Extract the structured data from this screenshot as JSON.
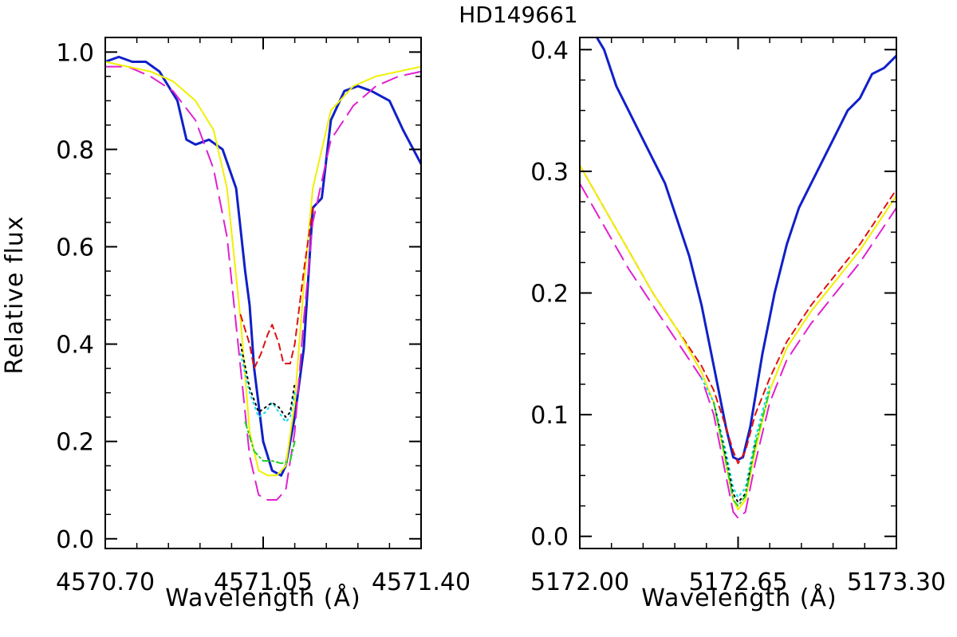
{
  "chart_data": [
    {
      "type": "line",
      "title": "HD149661",
      "xlabel": "Wavelength (Å)",
      "ylabel": "Relative flux",
      "xlim": [
        4570.7,
        4571.4
      ],
      "ylim": [
        -0.02,
        1.03
      ],
      "x_ticks": [
        4570.7,
        4571.05,
        4571.4
      ],
      "x_tick_labels": [
        "4570.70",
        "4571.05",
        "4571.40"
      ],
      "y_ticks": [
        0.0,
        0.2,
        0.4,
        0.6,
        0.8,
        1.0
      ],
      "y_tick_labels": [
        "0.0",
        "0.2",
        "0.4",
        "0.6",
        "0.8",
        "1.0"
      ],
      "series": [
        {
          "name": "observed",
          "color": "#1020c8",
          "dash": "solid",
          "width": 3,
          "x": [
            4570.7,
            4570.73,
            4570.76,
            4570.79,
            4570.82,
            4570.86,
            4570.88,
            4570.9,
            4570.93,
            4570.96,
            4570.99,
            4571.01,
            4571.02,
            4571.03,
            4571.05,
            4571.07,
            4571.09,
            4571.1,
            4571.12,
            4571.14,
            4571.16,
            4571.18,
            4571.2,
            4571.23,
            4571.26,
            4571.29,
            4571.33,
            4571.36,
            4571.4
          ],
          "y": [
            0.98,
            0.99,
            0.98,
            0.98,
            0.96,
            0.9,
            0.82,
            0.81,
            0.82,
            0.8,
            0.72,
            0.55,
            0.48,
            0.35,
            0.2,
            0.14,
            0.13,
            0.15,
            0.25,
            0.39,
            0.68,
            0.7,
            0.86,
            0.92,
            0.93,
            0.92,
            0.9,
            0.84,
            0.77
          ]
        },
        {
          "name": "model-magenta",
          "color": "#e020d0",
          "dash": "long-dash",
          "width": 2,
          "x": [
            4570.7,
            4570.75,
            4570.8,
            4570.85,
            4570.9,
            4570.94,
            4570.97,
            4571.0,
            4571.02,
            4571.04,
            4571.06,
            4571.08,
            4571.1,
            4571.12,
            4571.14,
            4571.16,
            4571.2,
            4571.25,
            4571.3,
            4571.35,
            4571.4
          ],
          "y": [
            0.97,
            0.97,
            0.95,
            0.92,
            0.86,
            0.76,
            0.62,
            0.35,
            0.17,
            0.09,
            0.08,
            0.08,
            0.1,
            0.22,
            0.45,
            0.65,
            0.82,
            0.89,
            0.93,
            0.95,
            0.96
          ]
        },
        {
          "name": "model-yellow",
          "color": "#f0f000",
          "dash": "solid",
          "width": 2,
          "x": [
            4570.7,
            4570.75,
            4570.8,
            4570.85,
            4570.9,
            4570.94,
            4570.97,
            4571.0,
            4571.02,
            4571.04,
            4571.06,
            4571.08,
            4571.1,
            4571.12,
            4571.14,
            4571.16,
            4571.2,
            4571.25,
            4571.3,
            4571.35,
            4571.4
          ],
          "y": [
            0.98,
            0.97,
            0.96,
            0.94,
            0.9,
            0.84,
            0.72,
            0.45,
            0.22,
            0.14,
            0.13,
            0.13,
            0.15,
            0.28,
            0.52,
            0.72,
            0.88,
            0.93,
            0.95,
            0.96,
            0.97
          ]
        },
        {
          "name": "model-red",
          "color": "#e01010",
          "dash": "dashed",
          "width": 2,
          "x": [
            4571.0,
            4571.02,
            4571.03,
            4571.045,
            4571.06,
            4571.07,
            4571.085,
            4571.095,
            4571.11,
            4571.12,
            4571.14,
            4571.16
          ],
          "y": [
            0.46,
            0.4,
            0.35,
            0.38,
            0.42,
            0.44,
            0.4,
            0.36,
            0.36,
            0.4,
            0.55,
            0.68
          ]
        },
        {
          "name": "model-cyan",
          "color": "#10d8e8",
          "dash": "dotted",
          "width": 2,
          "x": [
            4571.0,
            4571.02,
            4571.04,
            4571.055,
            4571.07,
            4571.085,
            4571.1,
            4571.11,
            4571.12
          ],
          "y": [
            0.38,
            0.3,
            0.25,
            0.26,
            0.28,
            0.26,
            0.24,
            0.25,
            0.3
          ]
        },
        {
          "name": "model-black",
          "color": "#000000",
          "dash": "dotted",
          "width": 2,
          "x": [
            4571.0,
            4571.02,
            4571.04,
            4571.055,
            4571.07,
            4571.085,
            4571.1,
            4571.11,
            4571.12
          ],
          "y": [
            0.4,
            0.31,
            0.26,
            0.27,
            0.28,
            0.27,
            0.25,
            0.26,
            0.32
          ]
        },
        {
          "name": "model-green",
          "color": "#20d020",
          "dash": "dash-dot",
          "width": 2,
          "x": [
            4571.01,
            4571.03,
            4571.05,
            4571.07,
            4571.09,
            4571.11,
            4571.12
          ],
          "y": [
            0.24,
            0.18,
            0.16,
            0.16,
            0.155,
            0.16,
            0.2
          ]
        }
      ]
    },
    {
      "type": "line",
      "title": "",
      "xlabel": "Wavelength (Å)",
      "ylabel": "",
      "xlim": [
        5172.0,
        5173.3
      ],
      "ylim": [
        -0.01,
        0.41
      ],
      "x_ticks": [
        5172.0,
        5172.65,
        5173.3
      ],
      "x_tick_labels": [
        "5172.00",
        "5172.65",
        "5173.30"
      ],
      "y_ticks": [
        0.0,
        0.1,
        0.2,
        0.3,
        0.4
      ],
      "y_tick_labels": [
        "0.0",
        "0.1",
        "0.2",
        "0.3",
        "0.4"
      ],
      "series": [
        {
          "name": "observed",
          "color": "#1020c8",
          "dash": "solid",
          "width": 3,
          "x": [
            5172.07,
            5172.1,
            5172.15,
            5172.2,
            5172.25,
            5172.3,
            5172.35,
            5172.4,
            5172.45,
            5172.5,
            5172.55,
            5172.6,
            5172.63,
            5172.65,
            5172.67,
            5172.7,
            5172.75,
            5172.8,
            5172.85,
            5172.9,
            5172.95,
            5173.0,
            5173.05,
            5173.1,
            5173.15,
            5173.2,
            5173.25,
            5173.3
          ],
          "y": [
            0.41,
            0.4,
            0.37,
            0.35,
            0.33,
            0.31,
            0.29,
            0.26,
            0.23,
            0.19,
            0.14,
            0.09,
            0.065,
            0.063,
            0.065,
            0.09,
            0.15,
            0.2,
            0.24,
            0.27,
            0.29,
            0.31,
            0.33,
            0.35,
            0.36,
            0.38,
            0.385,
            0.395
          ]
        },
        {
          "name": "model-red",
          "color": "#e01010",
          "dash": "dashed",
          "width": 2,
          "x": [
            5172.0,
            5172.1,
            5172.2,
            5172.3,
            5172.4,
            5172.5,
            5172.55,
            5172.6,
            5172.63,
            5172.65,
            5172.68,
            5172.72,
            5172.78,
            5172.85,
            5172.95,
            5173.05,
            5173.15,
            5173.3
          ],
          "y": [
            0.305,
            0.27,
            0.235,
            0.2,
            0.17,
            0.14,
            0.12,
            0.09,
            0.07,
            0.06,
            0.07,
            0.1,
            0.13,
            0.16,
            0.19,
            0.215,
            0.24,
            0.285
          ]
        },
        {
          "name": "model-yellow",
          "color": "#f0f000",
          "dash": "solid",
          "width": 2,
          "x": [
            5172.0,
            5172.1,
            5172.2,
            5172.3,
            5172.4,
            5172.5,
            5172.55,
            5172.6,
            5172.63,
            5172.65,
            5172.68,
            5172.72,
            5172.78,
            5172.85,
            5172.95,
            5173.05,
            5173.15,
            5173.3
          ],
          "y": [
            0.305,
            0.27,
            0.235,
            0.2,
            0.17,
            0.135,
            0.11,
            0.06,
            0.03,
            0.022,
            0.03,
            0.07,
            0.12,
            0.155,
            0.185,
            0.21,
            0.235,
            0.28
          ]
        },
        {
          "name": "model-magenta",
          "color": "#e020d0",
          "dash": "long-dash",
          "width": 2,
          "x": [
            5172.0,
            5172.1,
            5172.2,
            5172.3,
            5172.4,
            5172.5,
            5172.55,
            5172.6,
            5172.63,
            5172.65,
            5172.68,
            5172.72,
            5172.78,
            5172.85,
            5172.95,
            5173.05,
            5173.15,
            5173.3
          ],
          "y": [
            0.29,
            0.255,
            0.22,
            0.19,
            0.16,
            0.13,
            0.1,
            0.05,
            0.02,
            0.015,
            0.02,
            0.06,
            0.11,
            0.145,
            0.175,
            0.2,
            0.225,
            0.27
          ]
        },
        {
          "name": "model-cyan",
          "color": "#10d8e8",
          "dash": "dotted",
          "width": 2,
          "x": [
            5172.5,
            5172.55,
            5172.6,
            5172.63,
            5172.65,
            5172.68,
            5172.72,
            5172.78
          ],
          "y": [
            0.13,
            0.11,
            0.07,
            0.04,
            0.032,
            0.04,
            0.08,
            0.125
          ]
        },
        {
          "name": "model-black",
          "color": "#000000",
          "dash": "dotted",
          "width": 2,
          "x": [
            5172.55,
            5172.6,
            5172.63,
            5172.65,
            5172.68,
            5172.72
          ],
          "y": [
            0.11,
            0.065,
            0.035,
            0.028,
            0.035,
            0.075
          ]
        },
        {
          "name": "model-green",
          "color": "#20d020",
          "dash": "dash-dot",
          "width": 2,
          "x": [
            5172.55,
            5172.6,
            5172.63,
            5172.65,
            5172.68,
            5172.72,
            5172.78
          ],
          "y": [
            0.11,
            0.062,
            0.03,
            0.025,
            0.033,
            0.075,
            0.12
          ]
        }
      ]
    }
  ]
}
